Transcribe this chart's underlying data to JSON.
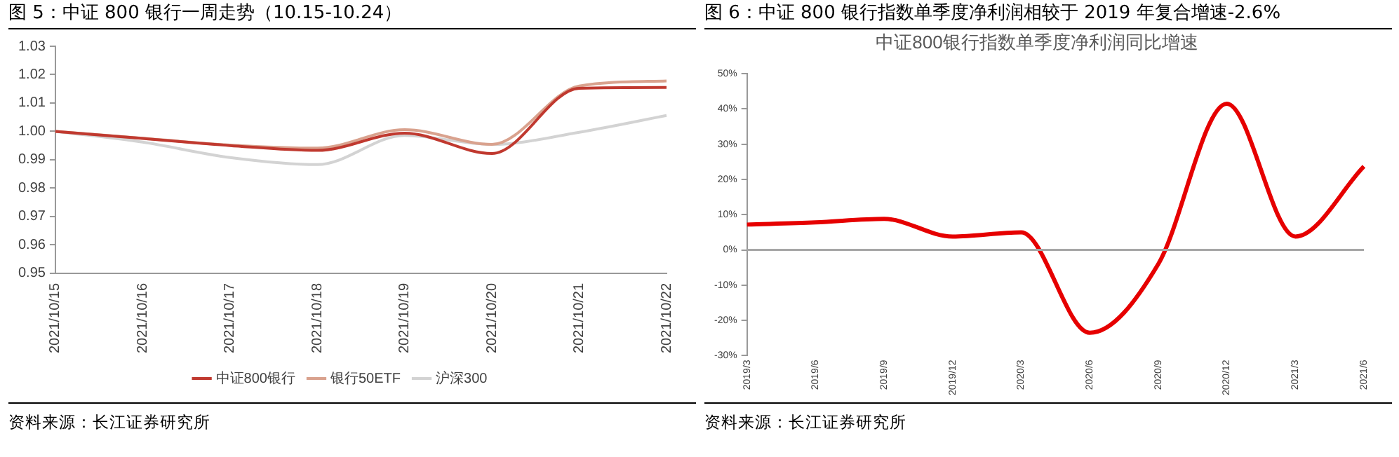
{
  "chart_data": [
    {
      "type": "line",
      "title": "图 5：中证 800 银行一周走势（10.15-10.24）",
      "categories": [
        "2021/10/15",
        "2021/10/16",
        "2021/10/17",
        "2021/10/18",
        "2021/10/19",
        "2021/10/20",
        "2021/10/21",
        "2021/10/22"
      ],
      "series": [
        {
          "name": "中证800银行",
          "color": "#c0392f",
          "values": [
            1.0,
            0.9975,
            0.995,
            0.9933,
            0.9994,
            0.9922,
            1.0152,
            1.0155
          ]
        },
        {
          "name": "银行50ETF",
          "color": "#d9a28e",
          "values": [
            1.0,
            0.9976,
            0.9952,
            0.9941,
            1.0006,
            0.9954,
            1.016,
            1.0178
          ]
        },
        {
          "name": "沪深300",
          "color": "#d3d3d3",
          "values": [
            1.0,
            0.9962,
            0.9908,
            0.9883,
            0.9986,
            0.9954,
            0.9997,
            1.0056
          ]
        }
      ],
      "ylim": [
        0.95,
        1.03
      ],
      "yticks": [
        0.95,
        0.96,
        0.97,
        0.98,
        0.99,
        {
          "value": 1.0,
          "label": "1.00"
        },
        1.01,
        1.02,
        1.03
      ],
      "grid": false,
      "legend": "bottom",
      "marker": "none",
      "line_style": "solid",
      "annotations": [
        "资料来源：长江证券研究所"
      ]
    },
    {
      "type": "line",
      "title": "图 6：中证 800 银行指数单季度净利润相较于 2019 年复合增速-2.6%",
      "subtitle": "中证800银行指数单季度净利润同比增速",
      "categories": [
        "2019/3",
        "2019/6",
        "2019/9",
        "2019/12",
        "2020/3",
        "2020/6",
        "2020/9",
        "2020/12",
        "2021/3",
        "2021/6"
      ],
      "series": [
        {
          "color": "#e60000",
          "values": [
            7.2,
            7.8,
            8.8,
            3.8,
            5,
            -23.5,
            -4,
            41.5,
            3.8,
            23.7
          ]
        }
      ],
      "ylim": [
        -30,
        50
      ],
      "yticks": [
        {
          "value": -30,
          "label": "-30%"
        },
        {
          "value": -20,
          "label": "-20%"
        },
        {
          "value": -10,
          "label": "-10%"
        },
        {
          "value": 0,
          "label": "0%"
        },
        {
          "value": 10,
          "label": "10%"
        },
        {
          "value": 20,
          "label": "20%"
        },
        {
          "value": 30,
          "label": "30%"
        },
        {
          "value": 40,
          "label": "40%"
        },
        {
          "value": 50,
          "label": "50%"
        }
      ],
      "ref_lines": [
        {
          "axis": "y",
          "value": 0,
          "color": "#a6a6a6"
        }
      ],
      "grid": false,
      "legend": false,
      "marker": "none",
      "line_style": "solid",
      "annotations": [
        "资料来源：长江证券研究所"
      ]
    }
  ]
}
